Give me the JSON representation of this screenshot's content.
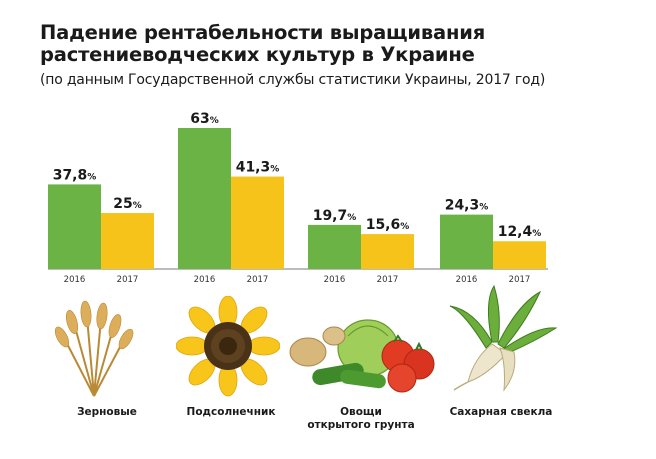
{
  "title": "Падение рентабельности выращивания растениеводческих культур в Украине",
  "subtitle": "(по данным Государственной службы статистики Украины, 2017 год)",
  "colors": {
    "y2016": "#6cb346",
    "y2017": "#f6c31a",
    "baseline": "#7a7a7a"
  },
  "chart_data": {
    "type": "bar",
    "categories": [
      "Зерновые",
      "Подсолнечник",
      "Овощи открытого грунта",
      "Сахарная свекла"
    ],
    "series": [
      {
        "name": "2016",
        "values": [
          37.8,
          63,
          19.7,
          24.3
        ],
        "labels": [
          "37,8",
          "63",
          "19,7",
          "24,3"
        ]
      },
      {
        "name": "2017",
        "values": [
          25,
          41.3,
          15.6,
          12.4
        ],
        "labels": [
          "25",
          "41,3",
          "15,6",
          "12,4"
        ]
      }
    ],
    "unit": "%",
    "ylim": [
      0,
      63
    ],
    "grid": false
  },
  "crops": [
    {
      "label": "Зерновые",
      "icon": "wheat-icon"
    },
    {
      "label": "Подсолнечник",
      "icon": "sunflower-icon"
    },
    {
      "label": "Овощи\nоткрытого грунта",
      "icon": "vegetables-icon"
    },
    {
      "label": "Сахарная свекла",
      "icon": "sugar-beet-icon"
    }
  ]
}
